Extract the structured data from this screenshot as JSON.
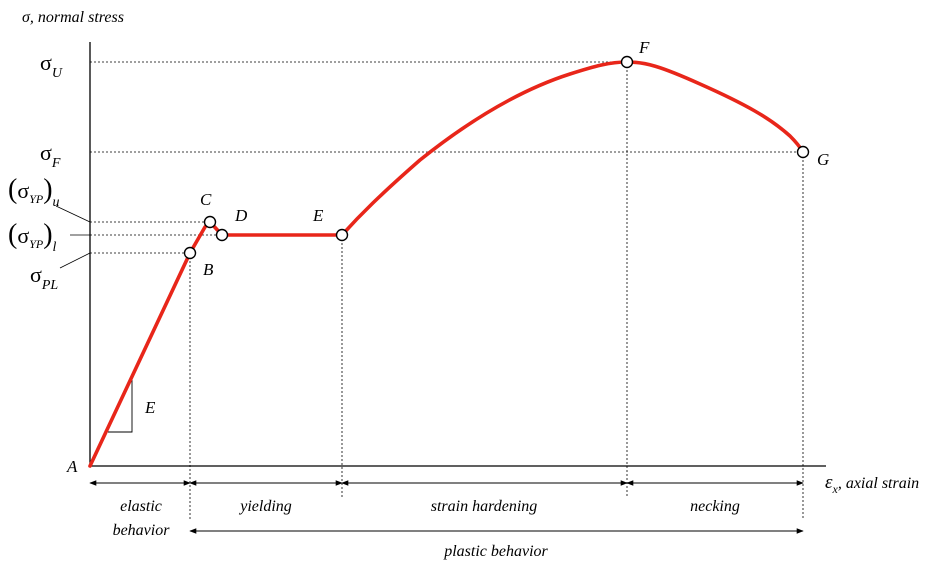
{
  "axes": {
    "y_label": "σ, normal stress",
    "x_symbol": "ε",
    "x_sub": "x",
    "x_label_suffix": ", axial strain"
  },
  "stress_levels": {
    "sigma_u": {
      "base": "σ",
      "sub": "U"
    },
    "sigma_f": {
      "base": "σ",
      "sub": "F"
    },
    "sigma_yp_upper": {
      "base": "σ",
      "sub": "YP",
      "outer_sub": "u"
    },
    "sigma_yp_lower": {
      "base": "σ",
      "sub": "YP",
      "outer_sub": "l"
    },
    "sigma_pl": {
      "base": "σ",
      "sub": "PL"
    }
  },
  "points": {
    "A": "A",
    "B": "B",
    "C": "C",
    "D": "D",
    "E": "E",
    "F": "F",
    "G": "G"
  },
  "slope_label": "E",
  "regions": {
    "elastic_line1": "elastic",
    "elastic_line2": "behavior",
    "yielding": "yielding",
    "strain_hardening": "strain hardening",
    "necking": "necking",
    "plastic": "plastic behavior"
  },
  "colors": {
    "curve": "#e8261a",
    "axes": "#000000",
    "guides": "#000000"
  }
}
